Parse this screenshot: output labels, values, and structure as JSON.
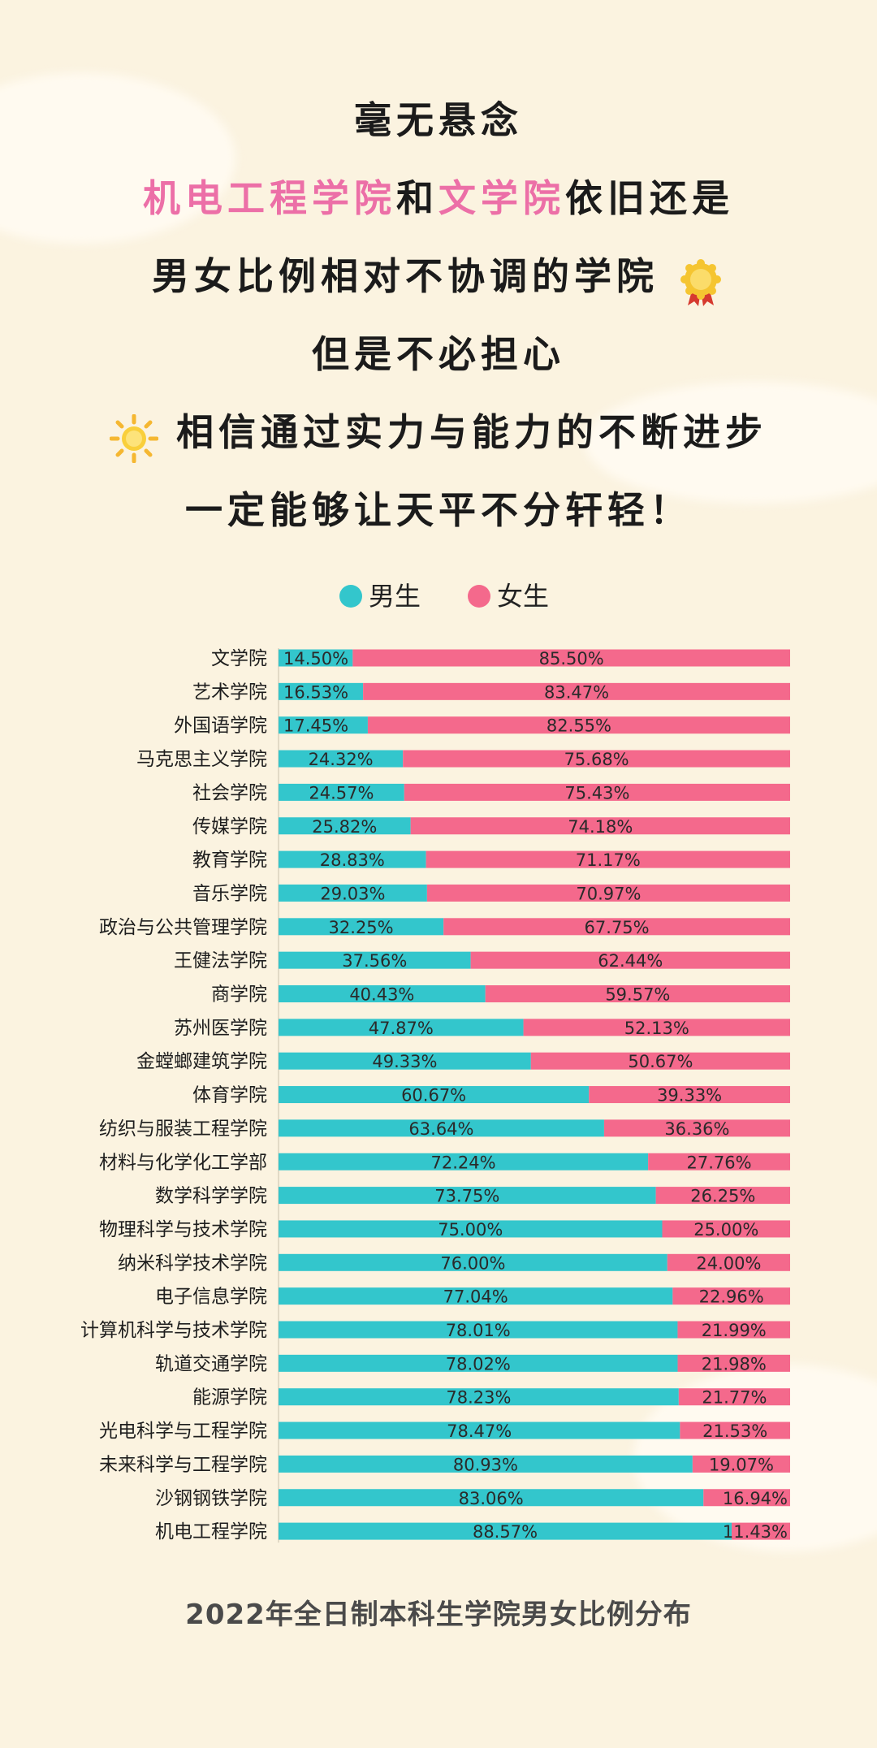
{
  "headline": {
    "line1": "毫无悬念",
    "line2_part1": "机电工程学院",
    "line2_part2": "和",
    "line2_part3": "文学院",
    "line2_part4": "依旧还是",
    "line3": "男女比例相对不协调的学院",
    "line4": "但是不必担心",
    "line5": "相信通过实力与能力的不断进步",
    "line6": "一定能够让天平不分轩轻！",
    "highlight_color": "#ec6fa7",
    "icons": [
      "medal-icon",
      "sun-icon"
    ]
  },
  "chart_data": {
    "type": "bar",
    "orientation": "horizontal",
    "stacked": true,
    "categories": [
      "文学院",
      "艺术学院",
      "外国语学院",
      "马克思主义学院",
      "社会学院",
      "传媒学院",
      "教育学院",
      "音乐学院",
      "政治与公共管理学院",
      "王健法学院",
      "商学院",
      "苏州医学院",
      "金螳螂建筑学院",
      "体育学院",
      "纺织与服装工程学院",
      "材料与化学化工学部",
      "数学科学学院",
      "物理科学与技术学院",
      "纳米科学技术学院",
      "电子信息学院",
      "计算机科学与技术学院",
      "轨道交通学院",
      "能源学院",
      "光电科学与工程学院",
      "未来科学与工程学院",
      "沙钢钢铁学院",
      "机电工程学院"
    ],
    "series": [
      {
        "name": "男生",
        "color": "#33c6cc",
        "values": [
          14.5,
          16.53,
          17.45,
          24.32,
          24.57,
          25.82,
          28.83,
          29.03,
          32.25,
          37.56,
          40.43,
          47.87,
          49.33,
          60.67,
          63.64,
          72.24,
          73.75,
          75.0,
          76.0,
          77.04,
          78.01,
          78.02,
          78.23,
          78.47,
          80.93,
          83.06,
          88.57
        ]
      },
      {
        "name": "女生",
        "color": "#f4698c",
        "values": [
          85.5,
          83.47,
          82.55,
          75.68,
          75.43,
          74.18,
          71.17,
          70.97,
          67.75,
          62.44,
          59.57,
          52.13,
          50.67,
          39.33,
          36.36,
          27.76,
          26.25,
          25.0,
          24.0,
          22.96,
          21.99,
          21.98,
          21.77,
          21.53,
          19.07,
          16.94,
          11.43
        ]
      }
    ],
    "value_format": "%.2f%",
    "xlim": [
      0,
      100
    ],
    "legend_position": "top-center",
    "grid": false,
    "title": "2022年全日制本科生学院男女比例分布"
  }
}
